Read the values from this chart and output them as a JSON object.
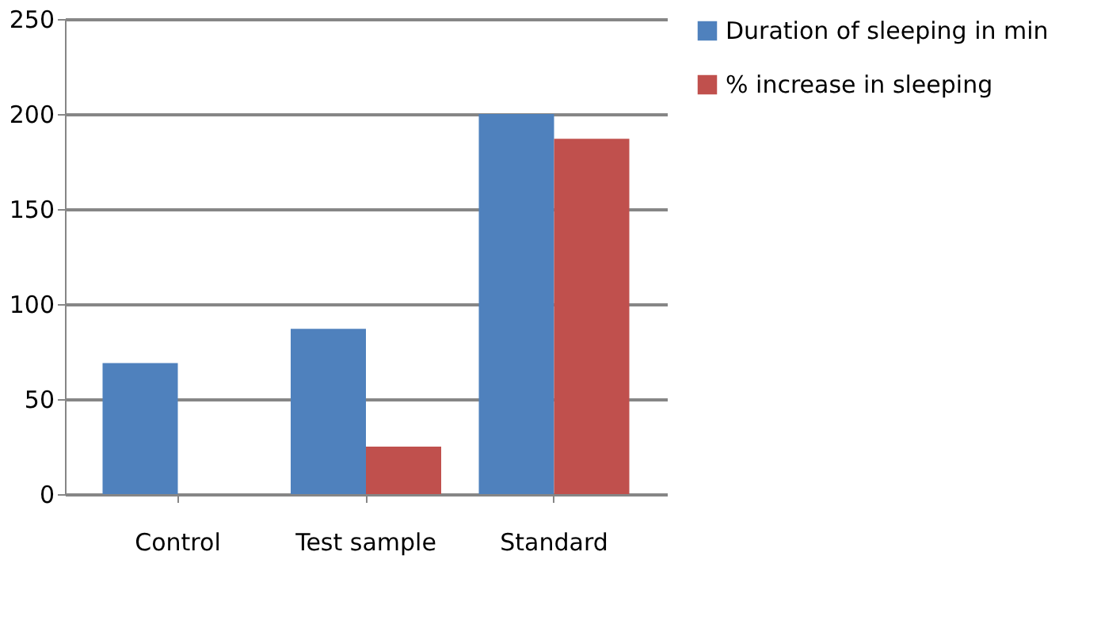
{
  "chart_data": {
    "type": "bar",
    "categories": [
      "Control",
      "Test sample",
      "Standard"
    ],
    "series": [
      {
        "name": "Duration of sleeping in  min",
        "color": "#4f81bd",
        "values": [
          69,
          87,
          200
        ]
      },
      {
        "name": "% increase in sleeping",
        "color": "#c0504d",
        "values": [
          0,
          25,
          187
        ]
      }
    ],
    "ylim": [
      0,
      250
    ],
    "yticks": [
      0,
      50,
      100,
      150,
      200,
      250
    ],
    "grid": "y",
    "legend": "right"
  }
}
